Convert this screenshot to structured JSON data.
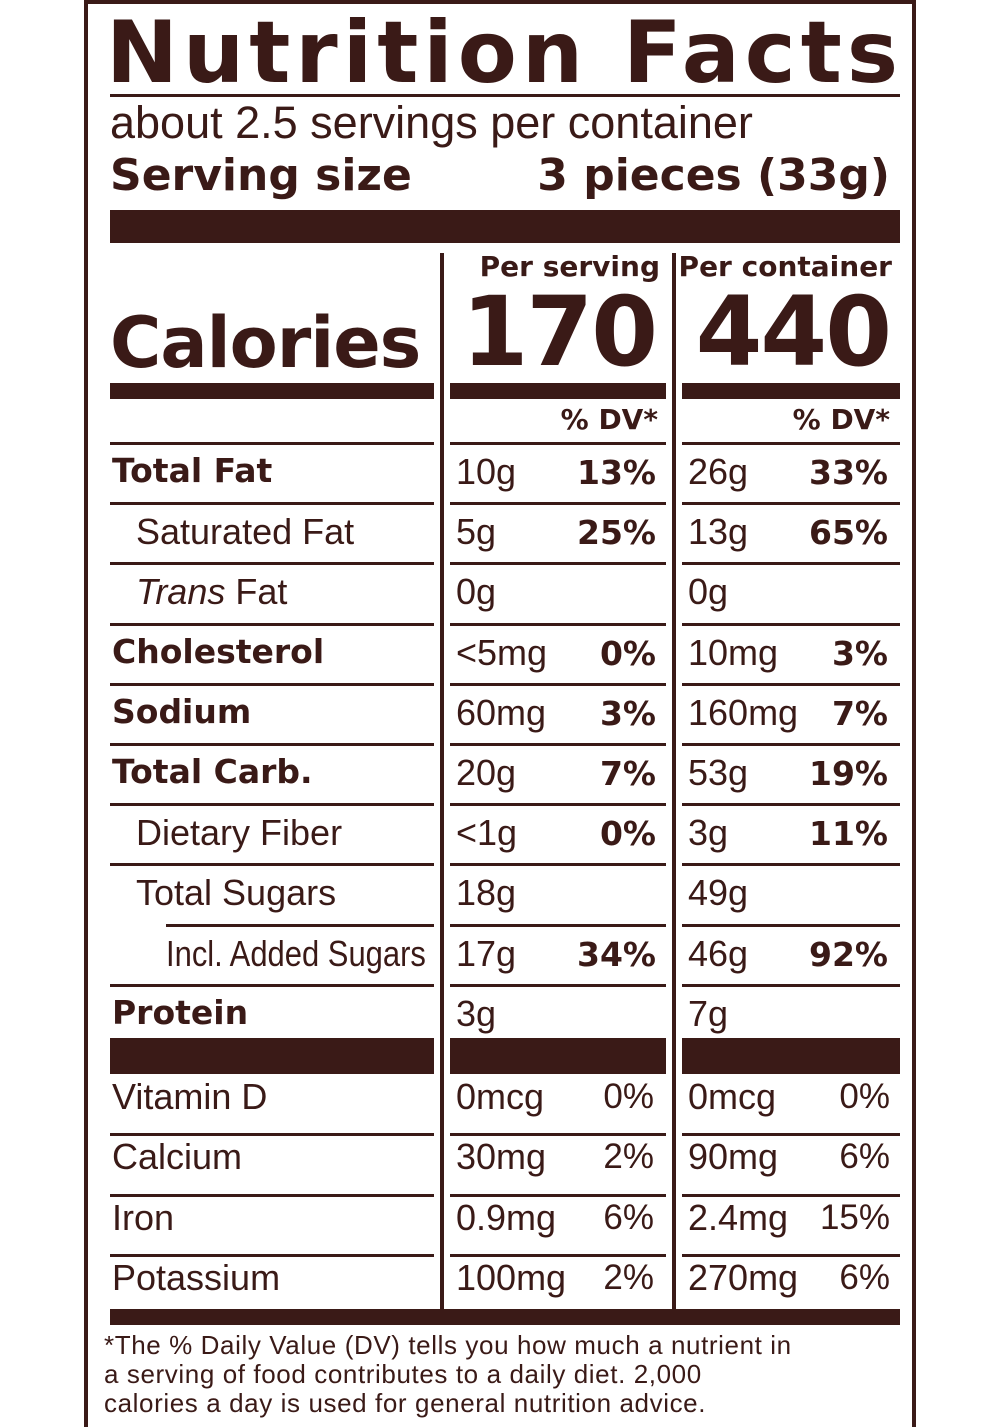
{
  "title": "Nutrition Facts",
  "servings_per_container": "about 2.5 servings per container",
  "serving_size": {
    "label": "Serving size",
    "value": "3 pieces (33g)"
  },
  "columns": {
    "per_serving": "Per serving",
    "per_container": "Per container"
  },
  "calories": {
    "label": "Calories",
    "per_serving": "170",
    "per_container": "440"
  },
  "dv_header": "% DV*",
  "nutrients": [
    {
      "name": "Total Fat",
      "style": "bold",
      "serving_amount": "10g",
      "serving_dv": "13%",
      "container_amount": "26g",
      "container_dv": "33%"
    },
    {
      "name": "Saturated Fat",
      "style": "indent",
      "serving_amount": "5g",
      "serving_dv": "25%",
      "container_amount": "13g",
      "container_dv": "65%"
    },
    {
      "name_italic": "Trans",
      "name": " Fat",
      "style": "indent",
      "serving_amount": "0g",
      "serving_dv": "",
      "container_amount": "0g",
      "container_dv": ""
    },
    {
      "name": "Cholesterol",
      "style": "bold",
      "serving_amount": "<5mg",
      "serving_dv": "0%",
      "container_amount": "10mg",
      "container_dv": "3%"
    },
    {
      "name": "Sodium",
      "style": "bold",
      "serving_amount": "60mg",
      "serving_dv": "3%",
      "container_amount": "160mg",
      "container_dv": "7%"
    },
    {
      "name": "Total Carb.",
      "style": "bold",
      "serving_amount": "20g",
      "serving_dv": "7%",
      "container_amount": "53g",
      "container_dv": "19%"
    },
    {
      "name": "Dietary Fiber",
      "style": "indent",
      "serving_amount": "<1g",
      "serving_dv": "0%",
      "container_amount": "3g",
      "container_dv": "11%"
    },
    {
      "name": "Total Sugars",
      "style": "indent",
      "serving_amount": "18g",
      "serving_dv": "",
      "container_amount": "49g",
      "container_dv": ""
    },
    {
      "name": "Incl. Added Sugars",
      "style": "indent2",
      "serving_amount": "17g",
      "serving_dv": "34%",
      "container_amount": "46g",
      "container_dv": "92%"
    },
    {
      "name": "Protein",
      "style": "bold",
      "serving_amount": "3g",
      "serving_dv": "",
      "container_amount": "7g",
      "container_dv": ""
    }
  ],
  "vitamins": [
    {
      "name": "Vitamin D",
      "serving_amount": "0mcg",
      "serving_dv": "0%",
      "container_amount": "0mcg",
      "container_dv": "0%"
    },
    {
      "name": "Calcium",
      "serving_amount": "30mg",
      "serving_dv": "2%",
      "container_amount": "90mg",
      "container_dv": "6%"
    },
    {
      "name": "Iron",
      "serving_amount": "0.9mg",
      "serving_dv": "6%",
      "container_amount": "2.4mg",
      "container_dv": "15%"
    },
    {
      "name": "Potassium",
      "serving_amount": "100mg",
      "serving_dv": "2%",
      "container_amount": "270mg",
      "container_dv": "6%"
    }
  ],
  "footnote": [
    "*The % Daily Value (DV) tells you how much a nutrient in",
    "a serving of food contributes to a daily diet. 2,000",
    "calories a day is used for general nutrition advice."
  ],
  "colors": {
    "ink": "#3a1a17",
    "background": "#ffffff"
  }
}
